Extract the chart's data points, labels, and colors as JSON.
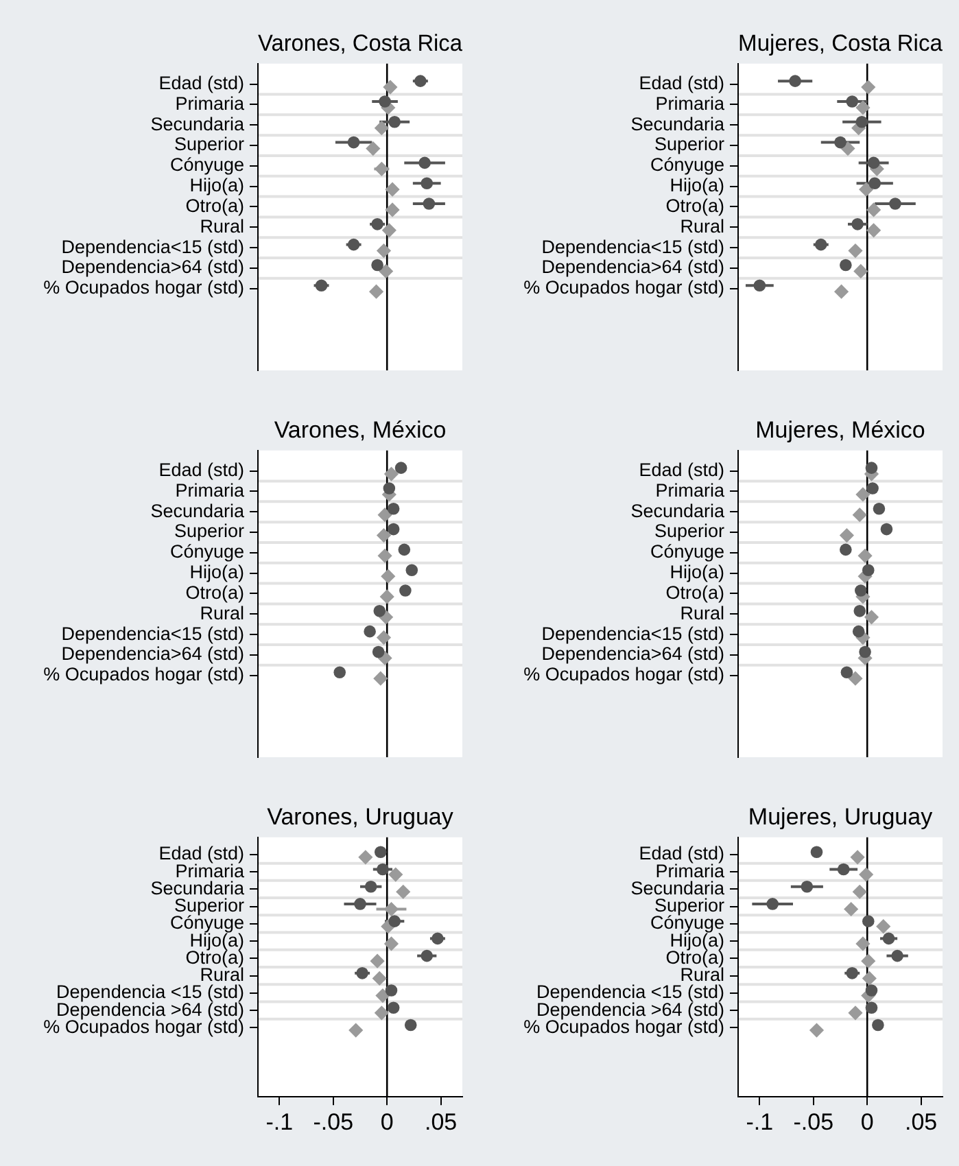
{
  "chart_data": [
    {
      "type": "scatter",
      "title": "Varones, Costa Rica",
      "orientation": "horizontal",
      "categories": [
        "Edad (std)",
        "Primaria",
        "Secundaria",
        "Superior",
        "Cónyuge",
        "Hijo(a)",
        "Otro(a)",
        "Rural",
        "Dependencia<15 (std)",
        "Dependencia>64 (std)",
        "% Ocupados hogar (std)"
      ],
      "series": [
        {
          "color": "#555555",
          "marker": "circle",
          "values": [
            0.031,
            -0.002,
            0.007,
            -0.031,
            0.035,
            0.037,
            0.039,
            -0.009,
            -0.031,
            -0.009,
            -0.061
          ],
          "errors": [
            0.007,
            0.012,
            0.014,
            0.017,
            0.019,
            0.013,
            0.015,
            0.007,
            0.007,
            null,
            0.007
          ]
        },
        {
          "color": "#9a9a9a",
          "marker": "diamond",
          "values": [
            0.003,
            0.001,
            -0.005,
            -0.013,
            -0.005,
            0.005,
            0.005,
            0.002,
            -0.003,
            -0.001,
            -0.01
          ],
          "errors": [
            null,
            null,
            null,
            null,
            0.007,
            null,
            null,
            null,
            null,
            null,
            null
          ]
        }
      ],
      "xlim": [
        -0.12,
        0.07
      ],
      "ref_lines": [
        {
          "axis": "x",
          "value": 0,
          "color": "#000000"
        }
      ],
      "grid": "y",
      "tick_labels": "y"
    },
    {
      "type": "scatter",
      "title": "Mujeres, Costa Rica",
      "orientation": "horizontal",
      "categories": [
        "Edad (std)",
        "Primaria",
        "Secundaria",
        "Superior",
        "Cónyuge",
        "Hijo(a)",
        "Otro(a)",
        "Rural",
        "Dependencia<15 (std)",
        "Dependencia>64 (std)",
        "% Ocupados hogar (std)"
      ],
      "series": [
        {
          "color": "#555555",
          "marker": "circle",
          "values": [
            -0.067,
            -0.014,
            -0.005,
            -0.025,
            0.006,
            0.007,
            0.026,
            -0.009,
            -0.043,
            -0.02,
            -0.1
          ],
          "errors": [
            0.016,
            0.014,
            0.018,
            0.018,
            0.014,
            0.017,
            0.019,
            0.009,
            0.007,
            null,
            0.013
          ]
        },
        {
          "color": "#9a9a9a",
          "marker": "diamond",
          "values": [
            0.001,
            -0.004,
            -0.008,
            -0.018,
            0.009,
            -0.001,
            0.006,
            0.006,
            -0.011,
            -0.006,
            -0.024
          ]
        }
      ],
      "xlim": [
        -0.12,
        0.07
      ],
      "ref_lines": [
        {
          "axis": "x",
          "value": 0,
          "color": "#000000"
        }
      ],
      "grid": "y",
      "tick_labels": "y"
    },
    {
      "type": "scatter",
      "title": "Varones, México",
      "orientation": "horizontal",
      "categories": [
        "Edad (std)",
        "Primaria",
        "Secundaria",
        "Superior",
        "Cónyuge",
        "Hijo(a)",
        "Otro(a)",
        "Rural",
        "Dependencia<15 (std)",
        "Dependencia>64 (std)",
        "% Ocupados hogar (std)"
      ],
      "series": [
        {
          "color": "#555555",
          "marker": "circle",
          "values": [
            0.013,
            0.002,
            0.006,
            0.006,
            0.016,
            0.023,
            0.017,
            -0.007,
            -0.016,
            -0.008,
            -0.044
          ]
        },
        {
          "color": "#9a9a9a",
          "marker": "diamond",
          "values": [
            0.004,
            0.002,
            -0.002,
            -0.003,
            -0.002,
            0.001,
            0.0,
            -0.001,
            -0.003,
            -0.002,
            -0.006
          ]
        }
      ],
      "xlim": [
        -0.12,
        0.07
      ],
      "ref_lines": [
        {
          "axis": "x",
          "value": 0,
          "color": "#000000"
        }
      ],
      "grid": "y",
      "tick_labels": "y"
    },
    {
      "type": "scatter",
      "title": "Mujeres, México",
      "orientation": "horizontal",
      "categories": [
        "Edad (std)",
        "Primaria",
        "Secundaria",
        "Superior",
        "Cónyuge",
        "Hijo(a)",
        "Otro(a)",
        "Rural",
        "Dependencia<15 (std)",
        "Dependencia>64 (std)",
        "% Ocupados hogar (std)"
      ],
      "series": [
        {
          "color": "#555555",
          "marker": "circle",
          "values": [
            0.004,
            0.005,
            0.011,
            0.018,
            -0.02,
            0.001,
            -0.006,
            -0.007,
            -0.008,
            -0.002,
            -0.019
          ]
        },
        {
          "color": "#9a9a9a",
          "marker": "diamond",
          "values": [
            0.004,
            -0.004,
            -0.007,
            -0.019,
            -0.002,
            -0.002,
            -0.004,
            0.004,
            -0.004,
            -0.002,
            -0.011
          ]
        }
      ],
      "xlim": [
        -0.12,
        0.07
      ],
      "ref_lines": [
        {
          "axis": "x",
          "value": 0,
          "color": "#000000"
        }
      ],
      "grid": "y",
      "tick_labels": "y"
    },
    {
      "type": "scatter",
      "title": "Varones, Uruguay",
      "orientation": "horizontal",
      "categories": [
        "Edad (std)",
        "Primaria",
        "Secundaria",
        "Superior",
        "Cónyuge",
        "Hijo(a)",
        "Otro(a)",
        "Rural",
        "Dependencia <15 (std)",
        "Dependencia >64 (std)",
        "% Ocupados hogar (std)"
      ],
      "series": [
        {
          "color": "#555555",
          "marker": "circle",
          "values": [
            -0.006,
            -0.004,
            -0.015,
            -0.025,
            0.007,
            0.047,
            0.037,
            -0.023,
            0.004,
            0.006,
            0.022
          ],
          "errors": [
            null,
            0.009,
            0.01,
            0.015,
            0.009,
            0.007,
            0.009,
            0.007,
            null,
            null,
            null
          ]
        },
        {
          "color": "#9a9a9a",
          "marker": "diamond",
          "values": [
            -0.02,
            0.008,
            0.015,
            0.004,
            0.001,
            0.004,
            -0.009,
            -0.007,
            -0.004,
            -0.005,
            -0.029
          ],
          "errors": [
            null,
            null,
            null,
            0.014,
            null,
            null,
            null,
            null,
            null,
            null,
            null
          ]
        }
      ],
      "xlim": [
        -0.12,
        0.07
      ],
      "xticks": [
        {
          "value": -0.1,
          "label": "-.1"
        },
        {
          "value": -0.05,
          "label": "-.05"
        },
        0,
        {
          "value": 0.05,
          "label": ".05"
        }
      ],
      "ref_lines": [
        {
          "axis": "x",
          "value": 0,
          "color": "#000000"
        }
      ],
      "grid": "y"
    },
    {
      "type": "scatter",
      "title": "Mujeres, Uruguay",
      "orientation": "horizontal",
      "categories": [
        "Edad (std)",
        "Primaria",
        "Secundaria",
        "Superior",
        "Cónyuge",
        "Hijo(a)",
        "Otro(a)",
        "Rural",
        "Dependencia <15 (std)",
        "Dependencia >64 (std)",
        "% Ocupados hogar (std)"
      ],
      "series": [
        {
          "color": "#555555",
          "marker": "circle",
          "values": [
            -0.047,
            -0.022,
            -0.056,
            -0.088,
            0.001,
            0.02,
            0.028,
            -0.014,
            0.004,
            0.004,
            0.01
          ],
          "errors": [
            null,
            0.013,
            0.015,
            0.019,
            null,
            0.008,
            0.01,
            0.007,
            null,
            null,
            null
          ]
        },
        {
          "color": "#9a9a9a",
          "marker": "diamond",
          "values": [
            -0.009,
            -0.001,
            -0.007,
            -0.015,
            0.015,
            -0.004,
            0.001,
            0.002,
            0.001,
            -0.011,
            -0.047
          ]
        }
      ],
      "xlim": [
        -0.12,
        0.07
      ],
      "xticks": [
        {
          "value": -0.1,
          "label": "-.1"
        },
        {
          "value": -0.05,
          "label": "-.05"
        },
        0,
        {
          "value": 0.05,
          "label": ".05"
        }
      ],
      "ref_lines": [
        {
          "axis": "x",
          "value": 0,
          "color": "#000000"
        }
      ],
      "grid": "y"
    }
  ]
}
